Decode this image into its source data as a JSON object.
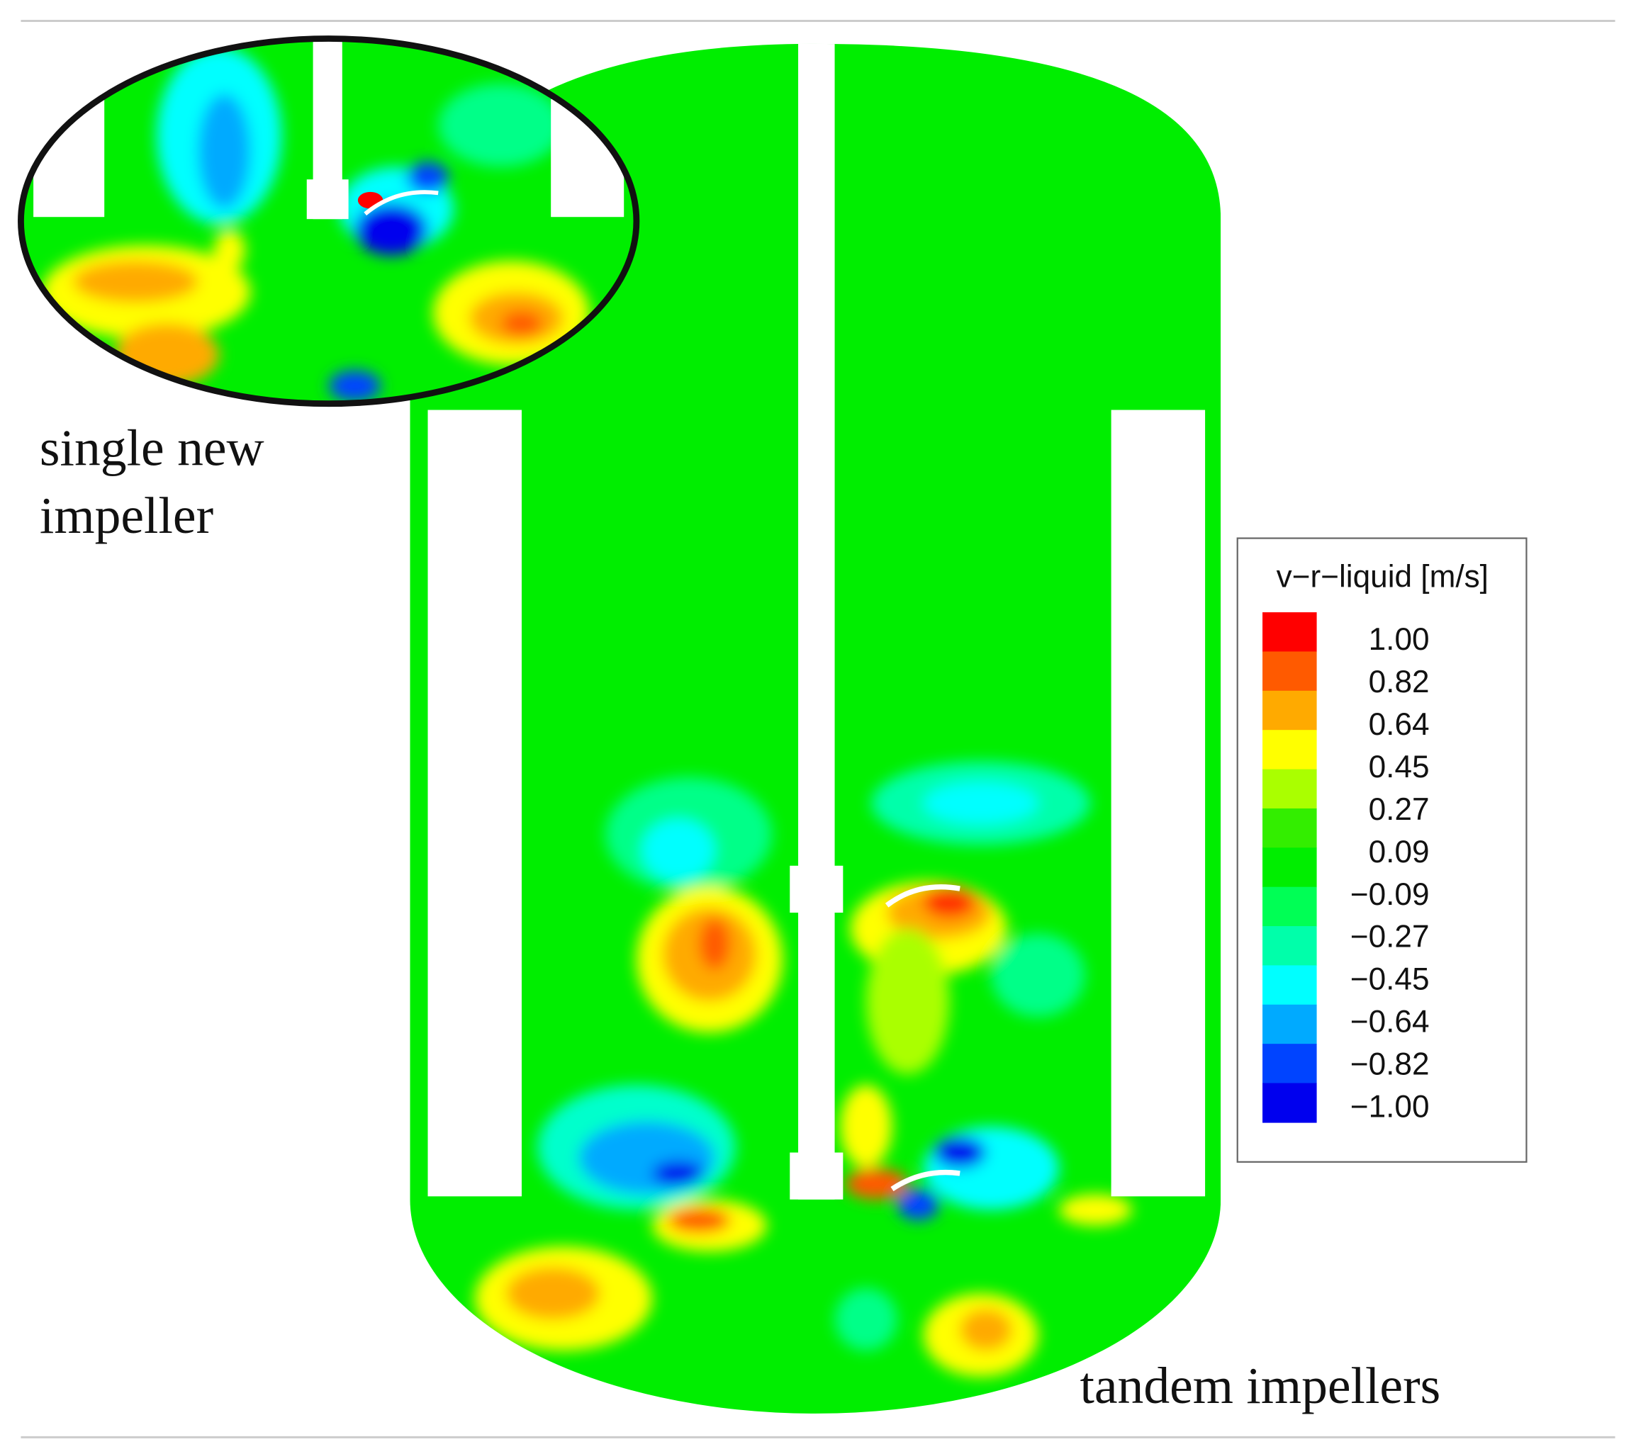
{
  "inset_label": [
    "single new",
    "impeller"
  ],
  "main_label": "tandem impellers",
  "legend": {
    "title": "v−r−liquid [m/s]",
    "labels": [
      "1.00",
      "0.82",
      "0.64",
      "0.45",
      "0.27",
      "0.09",
      "−0.09",
      "−0.27",
      "−0.45",
      "−0.64",
      "−0.82",
      "−1.00"
    ],
    "colors": [
      "#ff0000",
      "#ff5a00",
      "#ffaa00",
      "#ffff00",
      "#aaff00",
      "#33ee00",
      "#00ee00",
      "#00ff55",
      "#00ffaa",
      "#00ffff",
      "#00aaff",
      "#0044ff",
      "#0000ee"
    ]
  }
}
